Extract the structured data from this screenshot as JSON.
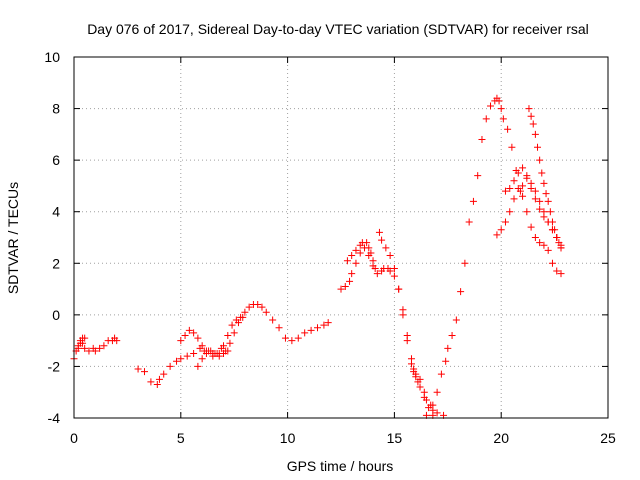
{
  "chart_data": {
    "type": "scatter",
    "title": "Day 076 of 2017, Sidereal Day-to-day VTEC variation (SDTVAR) for receiver rsal",
    "xlabel": "GPS time / hours",
    "ylabel": "SDTVAR / TECUs",
    "xlim": [
      0,
      25
    ],
    "ylim": [
      -4,
      10
    ],
    "xticks": [
      0,
      5,
      10,
      15,
      20,
      25
    ],
    "yticks": [
      -4,
      -2,
      0,
      2,
      4,
      6,
      8,
      10
    ],
    "xtick_labels": [
      "0",
      "5",
      "10",
      "15",
      "20",
      "25"
    ],
    "ytick_labels": [
      "-4",
      "-2",
      "0",
      "2",
      "4",
      "6",
      "8",
      "10"
    ],
    "grid": true,
    "marker": "+",
    "color": "#ff0000",
    "series": [
      {
        "x": [
          0.0,
          0.1,
          0.2,
          0.3,
          0.4,
          0.5,
          0.7,
          0.9,
          1.0,
          1.2,
          1.4,
          1.6,
          1.8,
          1.9,
          2.0
        ],
        "y": [
          -1.7,
          -1.4,
          -1.2,
          -1.0,
          -1.1,
          -1.3,
          -1.4,
          -1.3,
          -1.4,
          -1.3,
          -1.2,
          -1.0,
          -1.0,
          -0.9,
          -1.0
        ]
      },
      {
        "x": [
          0.2,
          0.3,
          0.4,
          0.5
        ],
        "y": [
          -1.3,
          -1.1,
          -0.9,
          -0.9
        ]
      },
      {
        "x": [
          3.0,
          3.3,
          3.6,
          3.9,
          4.0,
          4.2,
          4.5,
          4.8,
          5.0,
          5.3,
          5.6,
          5.9,
          6.1,
          6.3,
          6.5,
          6.7,
          6.9,
          7.0,
          7.2,
          7.4,
          7.6,
          7.8,
          8.0,
          8.2,
          8.4,
          8.6,
          8.8,
          9.0,
          9.3,
          9.6,
          9.9,
          10.2,
          10.5,
          10.8,
          11.1,
          11.4,
          11.7,
          11.9
        ],
        "y": [
          -2.1,
          -2.2,
          -2.6,
          -2.7,
          -2.5,
          -2.3,
          -2.0,
          -1.8,
          -1.7,
          -1.6,
          -1.5,
          -1.3,
          -1.4,
          -1.4,
          -1.6,
          -1.5,
          -1.3,
          -1.2,
          -0.8,
          -0.4,
          -0.2,
          -0.1,
          0.1,
          0.3,
          0.4,
          0.4,
          0.3,
          0.1,
          -0.2,
          -0.5,
          -0.9,
          -1.0,
          -0.9,
          -0.7,
          -0.6,
          -0.5,
          -0.4,
          -0.3
        ]
      },
      {
        "x": [
          5.0,
          5.2,
          5.4,
          5.6,
          5.8,
          6.0,
          6.2,
          6.5,
          6.8,
          7.1,
          7.3,
          7.5,
          7.7,
          7.9
        ],
        "y": [
          -1.0,
          -0.8,
          -0.6,
          -0.7,
          -0.9,
          -1.2,
          -1.4,
          -1.5,
          -1.5,
          -1.4,
          -1.1,
          -0.7,
          -0.3,
          -0.1
        ]
      },
      {
        "x": [
          5.8,
          6.0,
          6.2,
          6.4,
          6.6,
          6.8,
          7.0,
          7.2
        ],
        "y": [
          -2.0,
          -1.7,
          -1.5,
          -1.4,
          -1.5,
          -1.6,
          -1.5,
          -1.4
        ]
      },
      {
        "x": [
          12.5,
          12.7,
          12.9,
          13.0,
          13.2,
          13.4,
          13.6,
          13.8,
          14.0,
          14.2,
          14.4,
          14.5,
          14.7,
          14.8,
          15.0,
          15.2,
          15.4,
          15.6,
          15.8,
          15.9,
          16.0,
          16.2,
          16.4,
          16.5,
          16.7,
          16.8,
          17.0,
          17.3
        ],
        "y": [
          1.0,
          1.1,
          1.3,
          1.6,
          2.0,
          2.4,
          2.6,
          2.3,
          1.9,
          1.6,
          1.7,
          1.8,
          1.8,
          1.7,
          1.5,
          1.0,
          0.2,
          -0.8,
          -1.7,
          -2.1,
          -2.3,
          -2.5,
          -3.0,
          -3.3,
          -3.5,
          -3.7,
          -3.8,
          -3.9
        ]
      },
      {
        "x": [
          12.8,
          13.0,
          13.2,
          13.4,
          13.5,
          13.7,
          13.8,
          13.9,
          14.0,
          14.1
        ],
        "y": [
          2.1,
          2.3,
          2.5,
          2.7,
          2.8,
          2.8,
          2.6,
          2.4,
          2.1,
          1.8
        ]
      },
      {
        "x": [
          14.3,
          14.4,
          14.6,
          14.8,
          15.0,
          15.2,
          15.4,
          15.6,
          15.8,
          15.9,
          16.0,
          16.1,
          16.2,
          16.4,
          16.6,
          16.8
        ],
        "y": [
          3.2,
          2.9,
          2.6,
          2.3,
          1.8,
          1.0,
          0.0,
          -1.0,
          -1.9,
          -2.2,
          -2.4,
          -2.6,
          -2.8,
          -3.2,
          -3.6,
          -3.9
        ]
      },
      {
        "x": [
          16.5,
          16.8,
          17.0,
          17.2,
          17.4,
          17.5,
          17.7,
          17.9,
          18.1,
          18.3,
          18.5,
          18.7,
          18.9,
          19.1,
          19.3,
          19.5,
          19.7,
          19.8,
          19.9,
          20.0,
          20.1,
          20.3,
          20.5,
          20.7,
          20.9,
          21.0,
          21.2,
          21.4,
          21.6,
          21.8,
          22.0,
          22.2,
          22.4,
          22.6,
          22.8
        ],
        "y": [
          -3.9,
          -3.5,
          -3.0,
          -2.3,
          -1.8,
          -1.3,
          -0.8,
          -0.2,
          0.9,
          2.0,
          3.6,
          4.4,
          5.4,
          6.8,
          7.6,
          8.1,
          8.3,
          8.4,
          8.3,
          8.0,
          7.6,
          7.2,
          6.5,
          5.6,
          4.8,
          4.6,
          4.0,
          3.4,
          3.0,
          2.8,
          2.7,
          2.5,
          2.0,
          1.7,
          1.6
        ]
      },
      {
        "x": [
          19.8,
          20.0,
          20.2,
          20.4,
          20.6,
          20.8,
          21.0,
          21.2,
          21.4,
          21.6,
          21.8,
          22.0,
          22.2,
          22.4,
          22.6,
          22.8
        ],
        "y": [
          3.1,
          3.3,
          3.6,
          4.0,
          4.5,
          4.9,
          5.0,
          5.3,
          5.1,
          4.8,
          4.4,
          4.0,
          3.6,
          3.3,
          3.0,
          2.7
        ]
      },
      {
        "x": [
          20.2,
          20.4,
          20.6,
          20.8,
          21.0,
          21.2,
          21.4,
          21.6,
          21.8,
          22.0,
          22.2,
          22.4,
          22.6,
          22.8
        ],
        "y": [
          4.8,
          4.9,
          5.2,
          5.5,
          5.7,
          5.4,
          4.9,
          4.5,
          4.1,
          3.8,
          3.6,
          3.3,
          3.0,
          2.6
        ]
      },
      {
        "x": [
          21.3,
          21.4,
          21.5,
          21.6,
          21.7,
          21.8,
          21.9,
          22.0,
          22.1,
          22.2,
          22.3,
          22.4,
          22.5,
          22.6,
          22.7,
          22.8
        ],
        "y": [
          8.0,
          7.7,
          7.4,
          7.0,
          6.5,
          6.0,
          5.5,
          5.1,
          4.7,
          4.4,
          4.0,
          3.6,
          3.3,
          3.0,
          2.8,
          2.6
        ]
      }
    ]
  }
}
